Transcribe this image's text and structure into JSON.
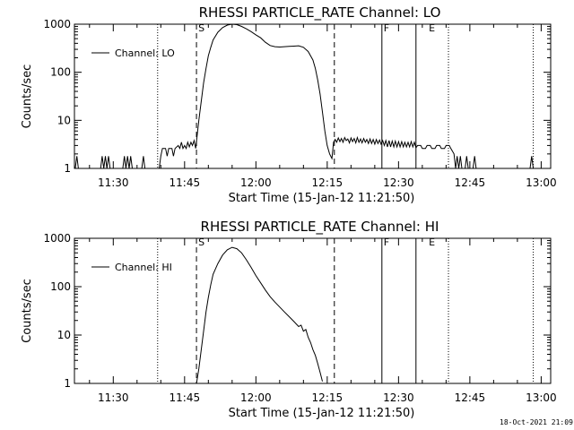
{
  "footer": {
    "timestamp": "18-Oct-2021 21:09"
  },
  "chart_data": [
    {
      "type": "line",
      "title": "RHESSI PARTICLE_RATE Channel: LO",
      "xlabel": "Start Time (15-Jan-12 11:21:50)",
      "ylabel": "Counts/sec",
      "y_scale": "log",
      "ylim": [
        1,
        1000
      ],
      "xlim": [
        "11:21:50",
        "13:02:00"
      ],
      "x_ticks": [
        "11:30",
        "11:45",
        "12:00",
        "12:15",
        "12:30",
        "12:45",
        "13:00"
      ],
      "y_ticks": [
        "1",
        "10",
        "100",
        "1000"
      ],
      "legend": {
        "position": "top-left",
        "label": "Channel: LO"
      },
      "markers": [
        {
          "label": "S",
          "time": "11:47:30",
          "style": "dashed"
        },
        {
          "label": "F",
          "time": "12:26:30",
          "style": "solid"
        },
        {
          "label": "E",
          "time": "12:36:00",
          "style": "dotted"
        }
      ],
      "vlines": [
        {
          "time": "11:39:20",
          "style": "dotted"
        },
        {
          "time": "11:47:30",
          "style": "dashed"
        },
        {
          "time": "12:16:30",
          "style": "dashed"
        },
        {
          "time": "12:26:30",
          "style": "solid"
        },
        {
          "time": "12:33:40",
          "style": "solid"
        },
        {
          "time": "12:40:30",
          "style": "dotted"
        },
        {
          "time": "12:58:20",
          "style": "dotted"
        }
      ],
      "series": [
        {
          "name": "Channel: LO",
          "points": [
            [
              "11:22:00",
              1
            ],
            [
              "11:22:20",
              1.8
            ],
            [
              "11:22:40",
              1
            ],
            [
              "11:27:20",
              1
            ],
            [
              "11:27:40",
              1.8
            ],
            [
              "11:28:00",
              1
            ],
            [
              "11:28:20",
              1.8
            ],
            [
              "11:28:40",
              1
            ],
            [
              "11:29:00",
              1.8
            ],
            [
              "11:29:20",
              1
            ],
            [
              "11:32:00",
              1
            ],
            [
              "11:32:20",
              1.8
            ],
            [
              "11:32:40",
              1
            ],
            [
              "11:33:00",
              1.8
            ],
            [
              "11:33:20",
              1
            ],
            [
              "11:33:40",
              1.8
            ],
            [
              "11:34:00",
              1
            ],
            [
              "11:36:00",
              1
            ],
            [
              "11:36:20",
              1.8
            ],
            [
              "11:36:40",
              1
            ],
            [
              "11:39:40",
              1
            ],
            [
              "11:40:00",
              1.8
            ],
            [
              "11:40:20",
              2.6
            ],
            [
              "11:41:00",
              2.6
            ],
            [
              "11:41:20",
              1.8
            ],
            [
              "11:41:40",
              2.6
            ],
            [
              "11:42:20",
              2.6
            ],
            [
              "11:42:40",
              1.8
            ],
            [
              "11:43:00",
              2.6
            ],
            [
              "11:43:40",
              3
            ],
            [
              "11:44:00",
              2.6
            ],
            [
              "11:44:20",
              3.5
            ],
            [
              "11:44:40",
              2.6
            ],
            [
              "11:45:00",
              3
            ],
            [
              "11:45:20",
              2.6
            ],
            [
              "11:45:40",
              3.5
            ],
            [
              "11:46:00",
              2.8
            ],
            [
              "11:46:20",
              3.5
            ],
            [
              "11:46:40",
              3
            ],
            [
              "11:47:00",
              3.8
            ],
            [
              "11:47:20",
              2.6
            ],
            [
              "11:47:40",
              5
            ],
            [
              "11:48:00",
              10
            ],
            [
              "11:48:30",
              25
            ],
            [
              "11:49:00",
              60
            ],
            [
              "11:49:30",
              120
            ],
            [
              "11:50:00",
              220
            ],
            [
              "11:50:30",
              330
            ],
            [
              "11:51:00",
              470
            ],
            [
              "11:52:00",
              680
            ],
            [
              "11:53:00",
              850
            ],
            [
              "11:54:00",
              960
            ],
            [
              "11:55:00",
              1000
            ],
            [
              "11:56:00",
              980
            ],
            [
              "11:57:00",
              900
            ],
            [
              "11:58:00",
              800
            ],
            [
              "11:59:00",
              700
            ],
            [
              "12:00:00",
              600
            ],
            [
              "12:01:00",
              520
            ],
            [
              "12:02:00",
              420
            ],
            [
              "12:03:00",
              360
            ],
            [
              "12:04:00",
              340
            ],
            [
              "12:05:00",
              335
            ],
            [
              "12:06:00",
              340
            ],
            [
              "12:07:00",
              345
            ],
            [
              "12:08:00",
              350
            ],
            [
              "12:09:00",
              355
            ],
            [
              "12:10:00",
              330
            ],
            [
              "12:11:00",
              270
            ],
            [
              "12:12:00",
              180
            ],
            [
              "12:12:30",
              120
            ],
            [
              "12:13:00",
              70
            ],
            [
              "12:13:30",
              35
            ],
            [
              "12:14:00",
              15
            ],
            [
              "12:14:30",
              6
            ],
            [
              "12:15:00",
              3
            ],
            [
              "12:15:30",
              2
            ],
            [
              "12:16:00",
              1.6
            ],
            [
              "12:16:20",
              3.5
            ],
            [
              "12:16:40",
              4
            ],
            [
              "12:17:00",
              3.5
            ],
            [
              "12:17:20",
              4.3
            ],
            [
              "12:17:40",
              3.6
            ],
            [
              "12:18:00",
              4.2
            ],
            [
              "12:18:20",
              3.5
            ],
            [
              "12:18:40",
              4.4
            ],
            [
              "12:19:00",
              3.8
            ],
            [
              "12:19:20",
              4.1
            ],
            [
              "12:19:40",
              3.4
            ],
            [
              "12:20:00",
              4.3
            ],
            [
              "12:20:20",
              3.6
            ],
            [
              "12:20:40",
              4.2
            ],
            [
              "12:21:00",
              3.4
            ],
            [
              "12:21:20",
              4.4
            ],
            [
              "12:21:40",
              3.5
            ],
            [
              "12:22:00",
              4.1
            ],
            [
              "12:22:20",
              3.4
            ],
            [
              "12:22:40",
              4.2
            ],
            [
              "12:23:00",
              3.5
            ],
            [
              "12:23:20",
              4
            ],
            [
              "12:23:40",
              3.3
            ],
            [
              "12:24:00",
              4.1
            ],
            [
              "12:24:20",
              3.3
            ],
            [
              "12:24:40",
              4
            ],
            [
              "12:25:00",
              3.2
            ],
            [
              "12:25:20",
              4
            ],
            [
              "12:25:40",
              3.3
            ],
            [
              "12:26:00",
              3.9
            ],
            [
              "12:26:20",
              3.2
            ],
            [
              "12:26:40",
              3.8
            ],
            [
              "12:27:00",
              3
            ],
            [
              "12:27:20",
              3.8
            ],
            [
              "12:27:40",
              2.8
            ],
            [
              "12:28:00",
              3.8
            ],
            [
              "12:28:20",
              2.8
            ],
            [
              "12:28:40",
              3.7
            ],
            [
              "12:29:00",
              2.8
            ],
            [
              "12:29:20",
              3.7
            ],
            [
              "12:29:40",
              2.8
            ],
            [
              "12:30:00",
              3.6
            ],
            [
              "12:30:20",
              2.8
            ],
            [
              "12:30:40",
              3.6
            ],
            [
              "12:31:00",
              2.8
            ],
            [
              "12:31:20",
              3.5
            ],
            [
              "12:31:40",
              2.8
            ],
            [
              "12:32:00",
              3.5
            ],
            [
              "12:32:20",
              2.8
            ],
            [
              "12:32:40",
              3.6
            ],
            [
              "12:33:00",
              2.8
            ],
            [
              "12:33:20",
              3.5
            ],
            [
              "12:33:40",
              2.7
            ],
            [
              "12:34:00",
              3
            ],
            [
              "12:34:40",
              3
            ],
            [
              "12:35:00",
              2.6
            ],
            [
              "12:35:40",
              2.6
            ],
            [
              "12:36:00",
              3
            ],
            [
              "12:36:40",
              3
            ],
            [
              "12:37:00",
              2.6
            ],
            [
              "12:37:40",
              2.6
            ],
            [
              "12:38:00",
              3
            ],
            [
              "12:38:40",
              3
            ],
            [
              "12:39:00",
              2.6
            ],
            [
              "12:39:40",
              2.6
            ],
            [
              "12:40:00",
              3
            ],
            [
              "12:40:40",
              3
            ],
            [
              "12:41:00",
              2.6
            ],
            [
              "12:41:40",
              2
            ],
            [
              "12:42:00",
              1
            ],
            [
              "12:42:20",
              1.8
            ],
            [
              "12:42:40",
              1
            ],
            [
              "12:43:00",
              1.8
            ],
            [
              "12:43:20",
              1
            ],
            [
              "12:44:00",
              1
            ],
            [
              "12:44:20",
              1.8
            ],
            [
              "12:44:40",
              1
            ],
            [
              "12:45:40",
              1
            ],
            [
              "12:46:00",
              1.8
            ],
            [
              "12:46:20",
              1
            ],
            [
              "12:57:40",
              1
            ],
            [
              "12:58:00",
              1.8
            ],
            [
              "12:58:20",
              1
            ]
          ]
        }
      ]
    },
    {
      "type": "line",
      "title": "RHESSI PARTICLE_RATE Channel: HI",
      "xlabel": "Start Time (15-Jan-12 11:21:50)",
      "ylabel": "Counts/sec",
      "y_scale": "log",
      "ylim": [
        1,
        1000
      ],
      "xlim": [
        "11:21:50",
        "13:02:00"
      ],
      "x_ticks": [
        "11:30",
        "11:45",
        "12:00",
        "12:15",
        "12:30",
        "12:45",
        "13:00"
      ],
      "y_ticks": [
        "1",
        "10",
        "100",
        "1000"
      ],
      "legend": {
        "position": "top-left",
        "label": "Channel: HI"
      },
      "markers": [
        {
          "label": "S",
          "time": "11:47:30",
          "style": "dashed"
        },
        {
          "label": "F",
          "time": "12:26:30",
          "style": "solid"
        },
        {
          "label": "E",
          "time": "12:36:00",
          "style": "dotted"
        }
      ],
      "vlines": [
        {
          "time": "11:39:20",
          "style": "dotted"
        },
        {
          "time": "11:47:30",
          "style": "dashed"
        },
        {
          "time": "12:16:30",
          "style": "dashed"
        },
        {
          "time": "12:26:30",
          "style": "solid"
        },
        {
          "time": "12:33:40",
          "style": "solid"
        },
        {
          "time": "12:40:30",
          "style": "dotted"
        },
        {
          "time": "12:58:20",
          "style": "dotted"
        }
      ],
      "series": [
        {
          "name": "Channel: HI",
          "points": [
            [
              "11:47:30",
              1
            ],
            [
              "11:48:00",
              2
            ],
            [
              "11:48:30",
              5
            ],
            [
              "11:49:00",
              12
            ],
            [
              "11:49:30",
              30
            ],
            [
              "11:50:00",
              60
            ],
            [
              "11:50:30",
              110
            ],
            [
              "11:51:00",
              180
            ],
            [
              "11:52:00",
              300
            ],
            [
              "11:53:00",
              450
            ],
            [
              "11:54:00",
              580
            ],
            [
              "11:55:00",
              650
            ],
            [
              "11:56:00",
              610
            ],
            [
              "11:57:00",
              500
            ],
            [
              "11:58:00",
              360
            ],
            [
              "11:59:00",
              250
            ],
            [
              "12:00:00",
              170
            ],
            [
              "12:01:00",
              120
            ],
            [
              "12:02:00",
              85
            ],
            [
              "12:03:00",
              62
            ],
            [
              "12:04:00",
              48
            ],
            [
              "12:05:00",
              38
            ],
            [
              "12:06:00",
              30
            ],
            [
              "12:07:00",
              24
            ],
            [
              "12:08:00",
              19
            ],
            [
              "12:09:00",
              15
            ],
            [
              "12:09:30",
              16
            ],
            [
              "12:10:00",
              12
            ],
            [
              "12:10:30",
              13
            ],
            [
              "12:11:00",
              9
            ],
            [
              "12:11:30",
              7
            ],
            [
              "12:12:00",
              5
            ],
            [
              "12:12:30",
              3.8
            ],
            [
              "12:13:00",
              2.6
            ],
            [
              "12:13:30",
              1.7
            ],
            [
              "12:14:00",
              1.1
            ]
          ]
        }
      ]
    }
  ]
}
